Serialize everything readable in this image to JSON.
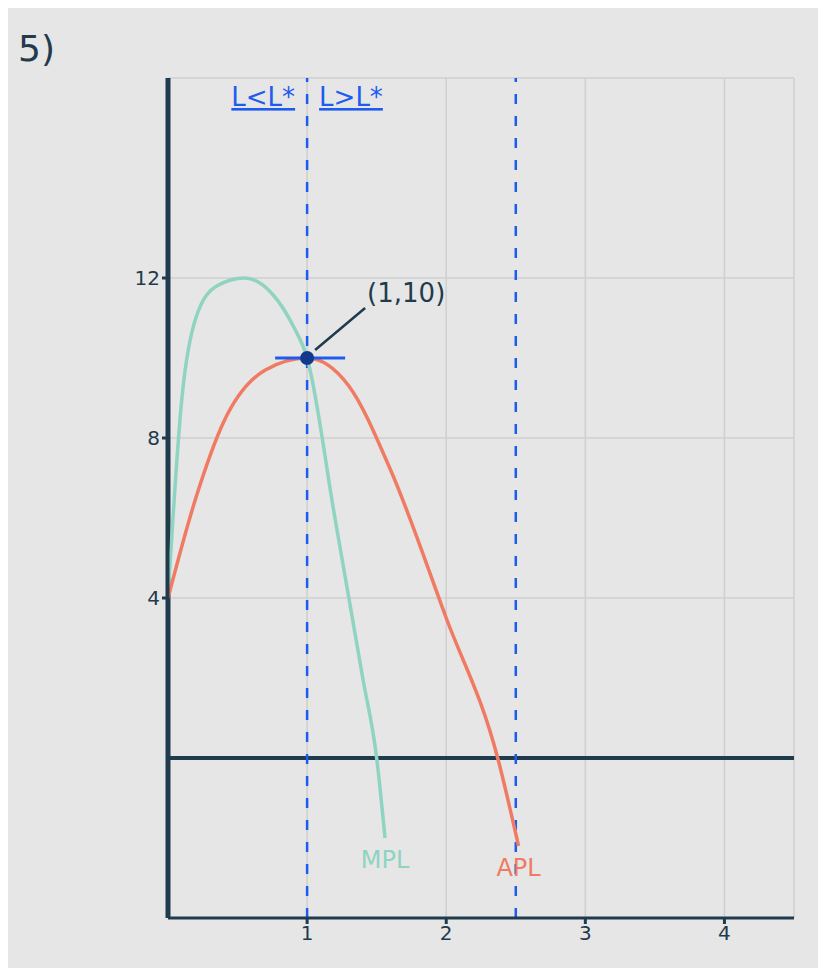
{
  "chart_data": {
    "type": "line",
    "title": "5)",
    "region_labels": [
      "L<L*",
      "L>L*"
    ],
    "xlim": [
      0,
      4.5
    ],
    "xticks": [
      1,
      2,
      3,
      4
    ],
    "ylim": [
      -4,
      17
    ],
    "yticks": [
      4,
      8,
      12
    ],
    "grid": true,
    "vlines": [
      1,
      2.5
    ],
    "annotations": [
      {
        "text": "(1,10)",
        "x": 1,
        "y": 10
      }
    ],
    "series": [
      {
        "name": "MPL",
        "color": "#8fd3c1",
        "x": [
          0,
          0.1,
          0.2,
          0.35,
          0.55,
          0.75,
          0.9,
          1,
          1.2,
          1.4,
          1.5,
          1.56
        ],
        "values": [
          4,
          9,
          11,
          11.8,
          12,
          11.6,
          10.8,
          10,
          6,
          2,
          0,
          -2
        ]
      },
      {
        "name": "APL",
        "color": "#f07a62",
        "x": [
          0,
          0.2,
          0.4,
          0.7,
          1,
          1.3,
          1.6,
          2,
          2.37,
          2.52
        ],
        "values": [
          4,
          6.5,
          8.4,
          9.7,
          10,
          9.3,
          7.2,
          3.5,
          0,
          -2.2
        ]
      }
    ]
  }
}
